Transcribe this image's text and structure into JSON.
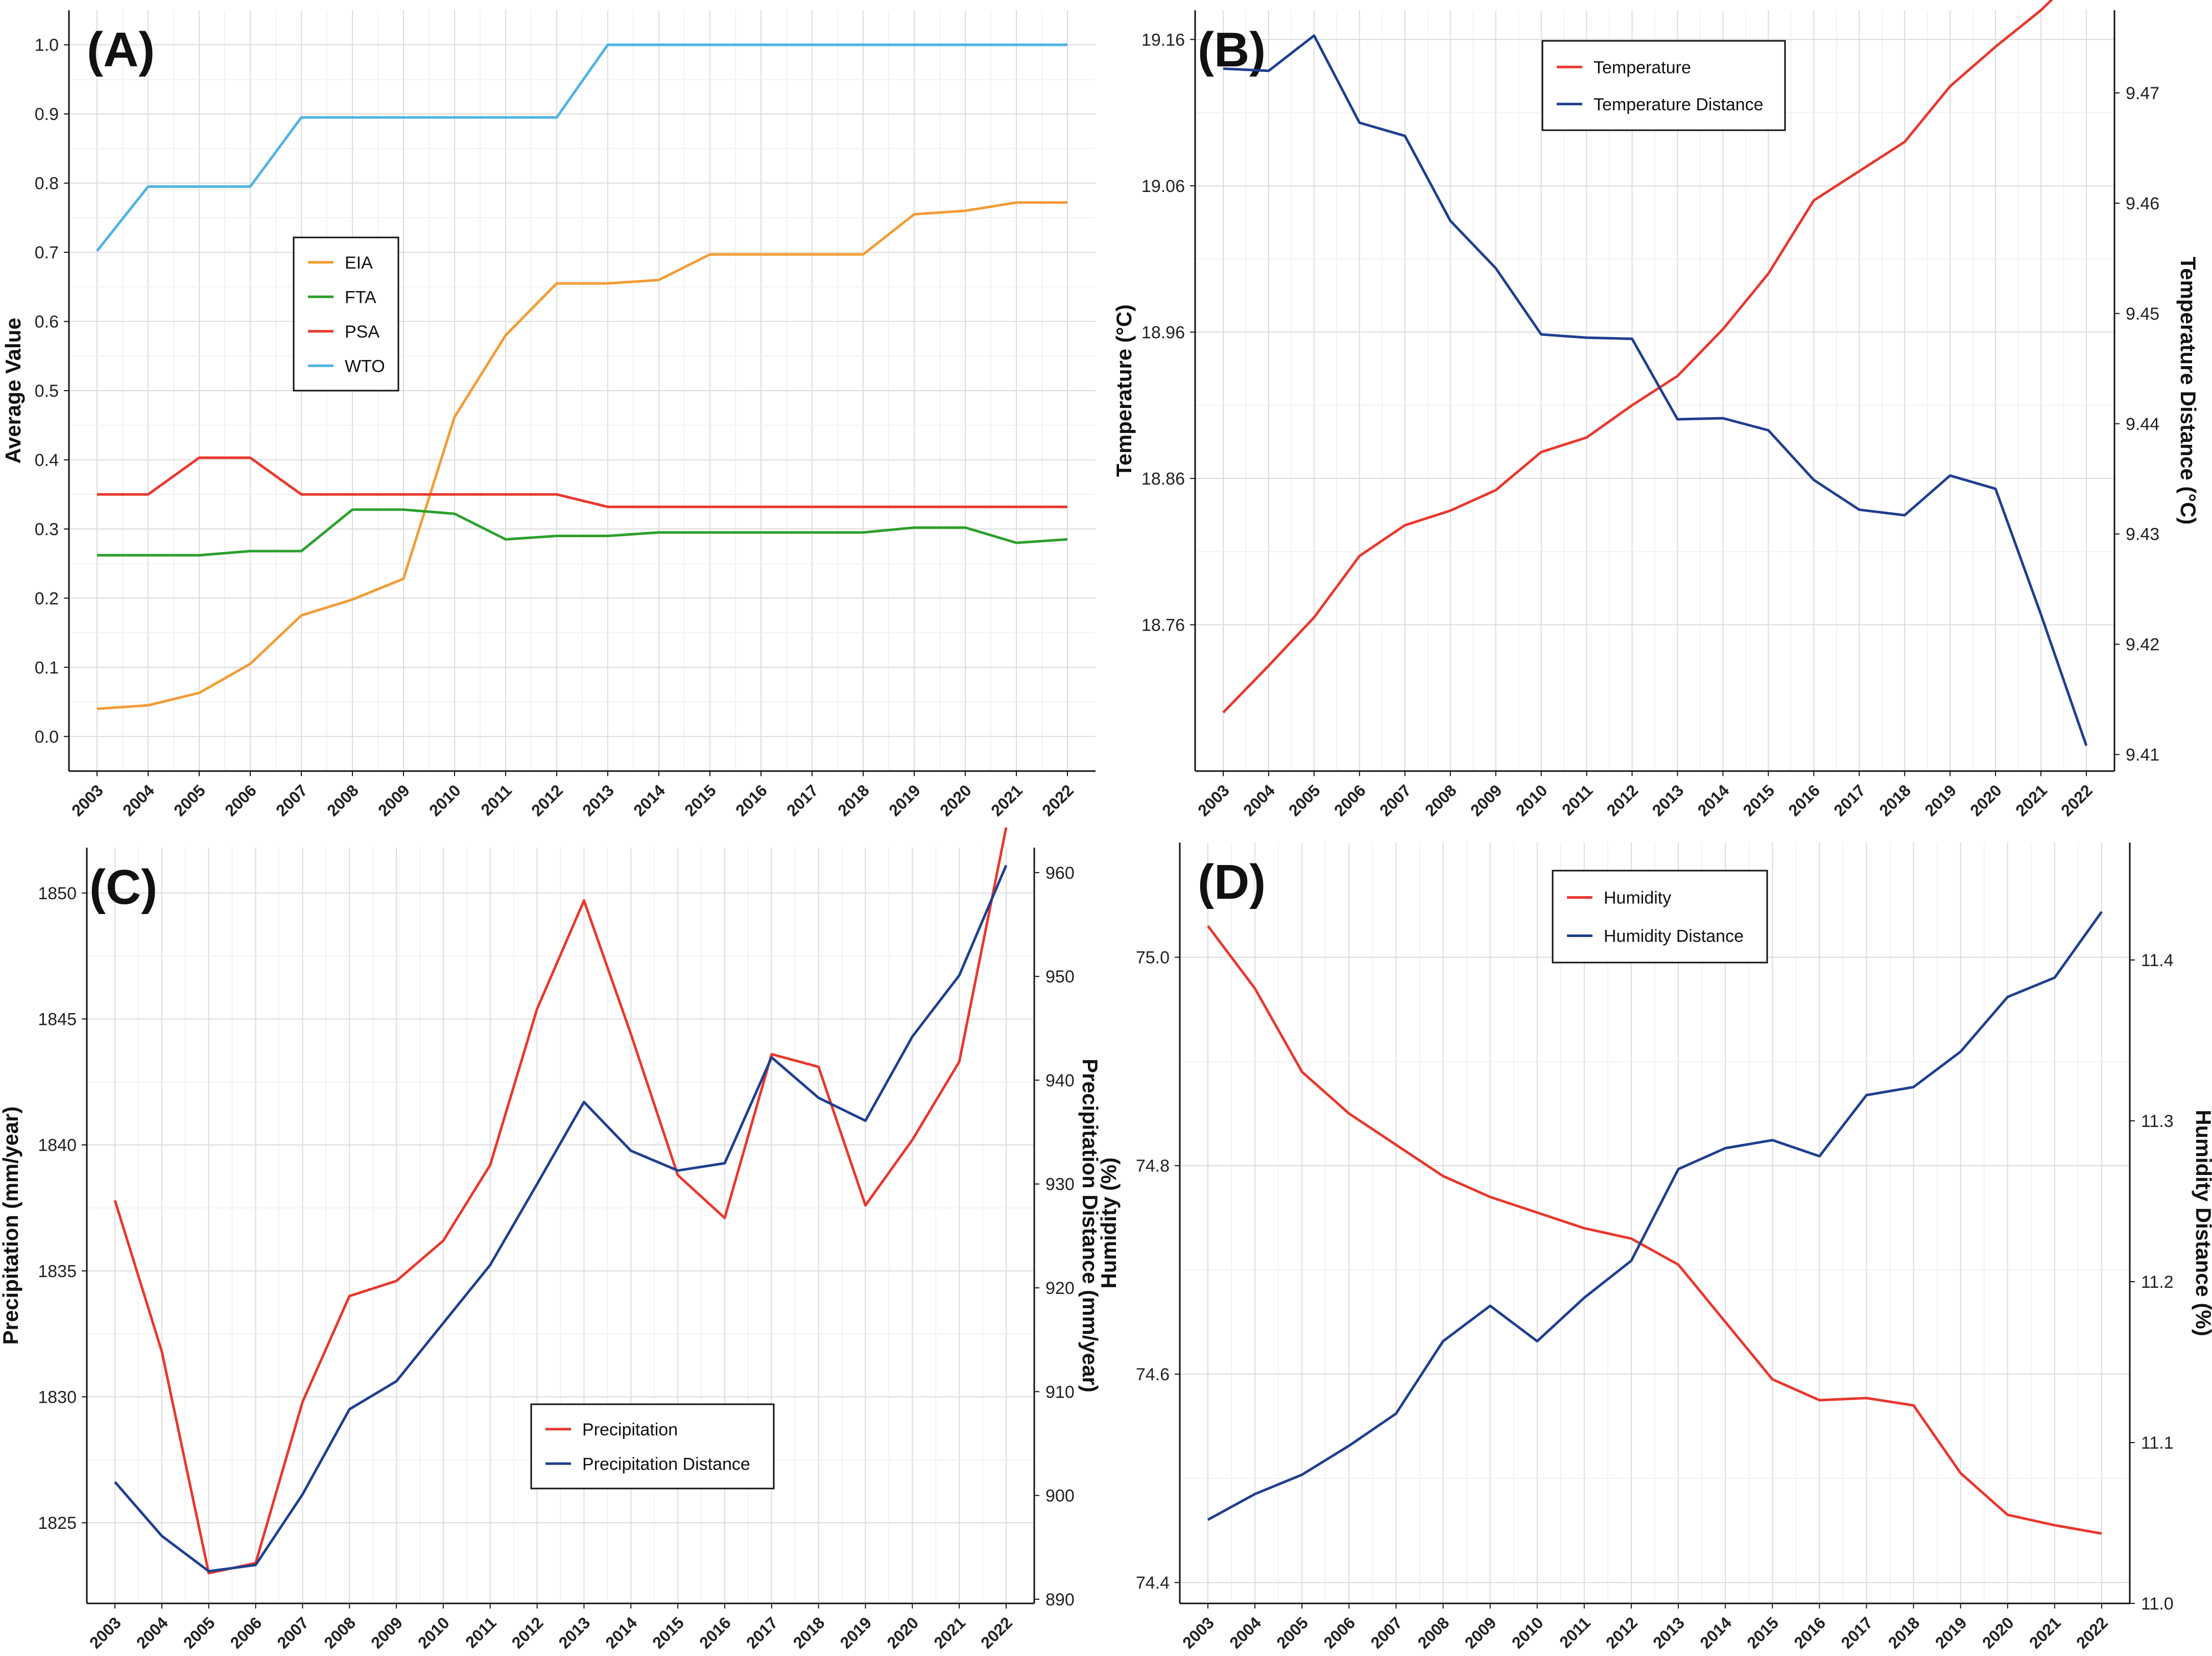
{
  "chart_data": [
    {
      "panel": "(A)",
      "type": "line",
      "x": [
        "2003",
        "2004",
        "2005",
        "2006",
        "2007",
        "2008",
        "2009",
        "2010",
        "2011",
        "2012",
        "2013",
        "2014",
        "2015",
        "2016",
        "2017",
        "2018",
        "2019",
        "2020",
        "2021",
        "2022"
      ],
      "ylabel": "Average Value",
      "ylim": [
        -0.05,
        1.05
      ],
      "yticks": [
        "0.0",
        "0.1",
        "0.2",
        "0.3",
        "0.4",
        "0.5",
        "0.6",
        "0.7",
        "0.8",
        "0.9",
        "1.0"
      ],
      "legend_position": "middle-left",
      "grid": true,
      "series": [
        {
          "name": "EIA",
          "color": "#f39c35",
          "axis": "left",
          "values": [
            0.04,
            0.045,
            0.063,
            0.105,
            0.175,
            0.198,
            0.228,
            0.462,
            0.58,
            0.655,
            0.655,
            0.66,
            0.697,
            0.697,
            0.697,
            0.697,
            0.755,
            0.76,
            0.772,
            0.772
          ],
          "step": false
        },
        {
          "name": "FTA",
          "color": "#2ca02c",
          "axis": "left",
          "values": [
            0.262,
            0.262,
            0.262,
            0.268,
            0.268,
            0.328,
            0.328,
            0.322,
            0.285,
            0.29,
            0.29,
            0.295,
            0.295,
            0.295,
            0.295,
            0.295,
            0.302,
            0.302,
            0.28,
            0.285
          ],
          "step": false
        },
        {
          "name": "PSA",
          "color": "#e8382d",
          "axis": "left",
          "values": [
            0.35,
            0.35,
            0.403,
            0.403,
            0.35,
            0.35,
            0.35,
            0.35,
            0.35,
            0.35,
            0.332,
            0.332,
            0.332,
            0.332,
            0.332,
            0.332,
            0.332,
            0.332,
            0.332,
            0.332
          ],
          "step": false
        },
        {
          "name": "WTO",
          "color": "#4db3e6",
          "axis": "left",
          "values": [
            0.702,
            0.795,
            0.795,
            0.795,
            0.895,
            0.895,
            0.895,
            0.895,
            0.895,
            0.895,
            1.0,
            1.0,
            1.0,
            1.0,
            1.0,
            1.0,
            1.0,
            1.0,
            1.0,
            1.0
          ],
          "step": false
        }
      ]
    },
    {
      "panel": "(B)",
      "type": "line",
      "x": [
        "2003",
        "2004",
        "2005",
        "2006",
        "2007",
        "2008",
        "2009",
        "2010",
        "2011",
        "2012",
        "2013",
        "2014",
        "2015",
        "2016",
        "2017",
        "2018",
        "2019",
        "2020",
        "2021",
        "2022"
      ],
      "ylabel": "Temperature (°C)",
      "y2label": "Temperature Distance (°C)",
      "ylim": [
        18.66,
        19.18
      ],
      "yticks": [
        "18.76",
        "18.86",
        "18.96",
        "19.06",
        "19.16"
      ],
      "y2lim": [
        9.4085,
        9.4775
      ],
      "y2ticks": [
        "9.41",
        "9.42",
        "9.43",
        "9.44",
        "9.45",
        "9.46",
        "9.47"
      ],
      "legend_position": "top-center",
      "grid": true,
      "series": [
        {
          "name": "Temperature",
          "color": "#e8382d",
          "axis": "left",
          "values": [
            18.7,
            18.732,
            18.765,
            18.807,
            18.828,
            18.838,
            18.852,
            18.878,
            18.888,
            18.91,
            18.93,
            18.962,
            19.0,
            19.05,
            19.07,
            19.09,
            19.128,
            19.155,
            19.18,
            19.21
          ]
        },
        {
          "name": "Temperature Distance",
          "color": "#1f3f8f",
          "axis": "right",
          "values": [
            9.4722,
            9.472,
            9.4752,
            9.4673,
            9.4661,
            9.4584,
            9.4541,
            9.4481,
            9.4478,
            9.4477,
            9.4404,
            9.4405,
            9.4394,
            9.4349,
            9.4322,
            9.4317,
            9.4353,
            9.4341,
            9.4227,
            9.4108
          ]
        }
      ]
    },
    {
      "panel": "(C)",
      "type": "line",
      "x": [
        "2003",
        "2004",
        "2005",
        "2006",
        "2007",
        "2008",
        "2009",
        "2010",
        "2011",
        "2012",
        "2013",
        "2014",
        "2015",
        "2016",
        "2017",
        "2018",
        "2019",
        "2020",
        "2021",
        "2022"
      ],
      "ylabel": "Precipitation (mm/year)",
      "y2label": "Precipitation Distance (mm/year)",
      "ylim": [
        1821.8,
        1851.8
      ],
      "yticks": [
        "1825",
        "1830",
        "1835",
        "1840",
        "1845",
        "1850"
      ],
      "y2lim": [
        889.6,
        962.4
      ],
      "y2ticks": [
        "890",
        "900",
        "910",
        "920",
        "930",
        "940",
        "950",
        "960"
      ],
      "legend_position": "bottom-center",
      "grid": true,
      "series": [
        {
          "name": "Precipitation",
          "color": "#e8382d",
          "axis": "left",
          "values": [
            1837.8,
            1831.8,
            1823.0,
            1823.4,
            1829.8,
            1834.0,
            1834.6,
            1836.2,
            1839.2,
            1845.4,
            1849.7,
            1844.4,
            1838.8,
            1837.1,
            1843.6,
            1843.1,
            1837.6,
            1840.2,
            1843.3,
            1852.6
          ]
        },
        {
          "name": "Precipitation Distance",
          "color": "#1f3f8f",
          "axis": "right",
          "values": [
            901.3,
            896.1,
            892.7,
            893.3,
            900.1,
            908.3,
            911.0,
            916.6,
            922.2,
            930.0,
            937.9,
            933.2,
            931.3,
            932.0,
            942.2,
            938.3,
            936.1,
            944.2,
            950.1,
            960.7
          ]
        }
      ]
    },
    {
      "panel": "(D)",
      "type": "line",
      "x": [
        "2003",
        "2004",
        "2005",
        "2006",
        "2007",
        "2008",
        "2009",
        "2010",
        "2011",
        "2012",
        "2013",
        "2014",
        "2015",
        "2016",
        "2017",
        "2018",
        "2019",
        "2020",
        "2021",
        "2022"
      ],
      "ylabel": "Humidity (%)",
      "y2label": "Humidity Distance (%)",
      "ylim": [
        74.38,
        75.11
      ],
      "yticks": [
        "74.4",
        "74.6",
        "74.8",
        "75.0"
      ],
      "y2lim": [
        11.0,
        11.473
      ],
      "y2ticks": [
        "11.0",
        "11.1",
        "11.2",
        "11.3",
        "11.4"
      ],
      "legend_position": "top-center",
      "grid": true,
      "series": [
        {
          "name": "Humidity",
          "color": "#e8382d",
          "axis": "left",
          "values": [
            75.03,
            74.97,
            74.89,
            74.85,
            74.82,
            74.79,
            74.77,
            74.755,
            74.74,
            74.73,
            74.705,
            74.65,
            74.595,
            74.575,
            74.577,
            74.57,
            74.505,
            74.465,
            74.455,
            74.447
          ]
        },
        {
          "name": "Humidity Distance",
          "color": "#1f3f8f",
          "axis": "right",
          "values": [
            11.052,
            11.068,
            11.08,
            11.098,
            11.118,
            11.163,
            11.185,
            11.163,
            11.19,
            11.213,
            11.27,
            11.283,
            11.288,
            11.278,
            11.316,
            11.321,
            11.343,
            11.377,
            11.389,
            11.43
          ]
        }
      ]
    }
  ]
}
